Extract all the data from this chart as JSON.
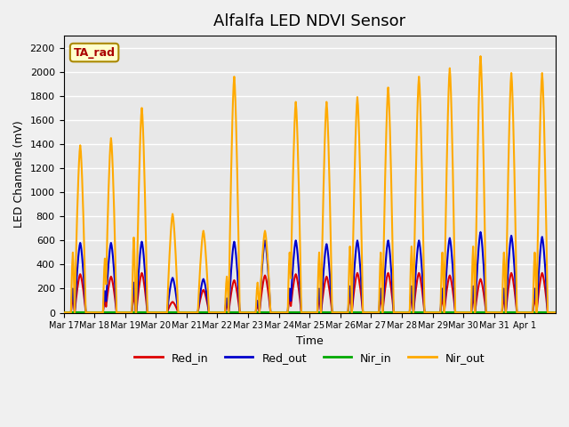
{
  "title": "Alfalfa LED NDVI Sensor",
  "xlabel": "Time",
  "ylabel": "LED Channels (mV)",
  "annotation": "TA_rad",
  "ylim": [
    0,
    2300
  ],
  "yticks": [
    0,
    200,
    400,
    600,
    800,
    1000,
    1200,
    1400,
    1600,
    1800,
    2000,
    2200
  ],
  "xtick_labels": [
    "Mar 17",
    "Mar 18",
    "Mar 19",
    "Mar 20",
    "Mar 21",
    "Mar 22",
    "Mar 23",
    "Mar 24",
    "Mar 25",
    "Mar 26",
    "Mar 27",
    "Mar 28",
    "Mar 29",
    "Mar 30",
    "Mar 31",
    "Apr 1"
  ],
  "bg_color": "#e8e8e8",
  "grid_color": "#ffffff",
  "legend_entries": [
    "Red_in",
    "Red_out",
    "Nir_in",
    "Nir_out"
  ],
  "legend_colors": [
    "#dd0000",
    "#0000cc",
    "#00aa00",
    "#ffaa00"
  ],
  "line_width": 1.5,
  "days": 16,
  "nir_out_peaks": [
    1390,
    1450,
    1700,
    820,
    680,
    1960,
    680,
    1750,
    1750,
    1790,
    1870,
    1960,
    2030,
    2130,
    1990,
    1990
  ],
  "red_in_peaks": [
    320,
    300,
    330,
    90,
    190,
    270,
    310,
    320,
    300,
    330,
    330,
    330,
    310,
    280,
    330,
    330
  ],
  "red_out_peaks": [
    580,
    580,
    590,
    290,
    280,
    590,
    600,
    600,
    570,
    600,
    600,
    600,
    620,
    670,
    640,
    630
  ],
  "nir_in_baseline": 5
}
